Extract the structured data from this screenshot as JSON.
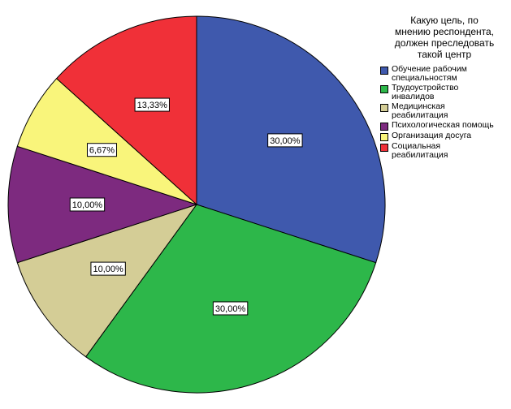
{
  "chart_data": {
    "type": "pie",
    "title": "",
    "legend_title": "Какую цель, по\nмнению респондента,\nдолжен преследовать\nтакой центр",
    "legend_placement": "top-right",
    "categories": [
      "Обучение рабочим специальностям",
      "Трудоустройство инвалидов",
      "Медицинская реабилитация",
      "Психологическая помощь",
      "Организация досуга",
      "Социальная реабилитация"
    ],
    "legend_labels": [
      "Обучение рабочим\nспециальностям",
      "Трудоустройство\nинвалидов",
      "Медицинская\nреабилитация",
      "Психологическая помощь",
      "Организация досуга",
      "Социальная\nреабилитация"
    ],
    "values": [
      30.0,
      30.0,
      10.0,
      10.0,
      6.67,
      13.33
    ],
    "data_labels": [
      "30,00%",
      "30,00%",
      "10,00%",
      "10,00%",
      "6,67%",
      "13,33%"
    ],
    "colors": [
      "#3f59ad",
      "#2db74a",
      "#d4cd96",
      "#7d2a7f",
      "#f9f57b",
      "#f03038"
    ]
  }
}
